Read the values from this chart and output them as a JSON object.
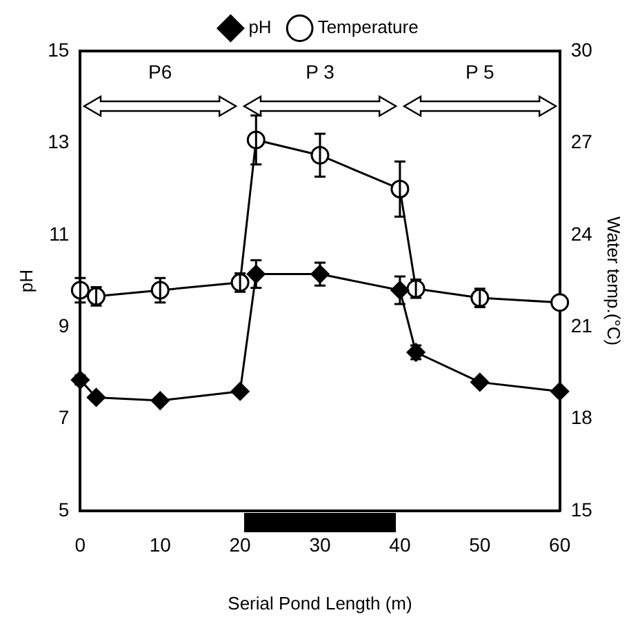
{
  "chart_data": {
    "type": "line",
    "xlabel": "Serial Pond Length (m)",
    "ylabel": "pH",
    "y2label": "Water temp.(°C)",
    "xlim": [
      0,
      60
    ],
    "xticks": [
      0,
      10,
      20,
      30,
      40,
      50,
      60
    ],
    "ylim": [
      5,
      15
    ],
    "yticks": [
      5,
      7,
      9,
      11,
      13,
      15
    ],
    "y2lim": [
      15,
      30
    ],
    "y2ticks": [
      15,
      18,
      21,
      24,
      27,
      30
    ],
    "legend": "top",
    "grid": false,
    "line_style": "solid",
    "series": [
      {
        "name": "pH",
        "color": "#000000",
        "marker": "diamond",
        "x": [
          0,
          2,
          10,
          20,
          22,
          30,
          40,
          42,
          50,
          60
        ],
        "values": [
          7.85,
          7.47,
          7.4,
          7.6,
          10.15,
          10.15,
          9.8,
          8.45,
          7.8,
          7.6
        ],
        "errors": [
          0.1,
          null,
          null,
          null,
          0.3,
          0.25,
          0.3,
          0.15,
          null,
          null
        ]
      },
      {
        "name": "Temperature",
        "color": "#000000",
        "marker": "circle",
        "axis": "y2",
        "x": [
          0,
          2,
          10,
          20,
          22,
          30,
          40,
          42,
          50,
          60
        ],
        "values": [
          22.2,
          22.0,
          22.2,
          22.45,
          27.1,
          26.6,
          25.5,
          22.25,
          21.95,
          21.8
        ],
        "errors": [
          0.4,
          0.3,
          0.4,
          0.3,
          0.8,
          0.7,
          0.9,
          0.3,
          0.3,
          null
        ]
      }
    ],
    "annotations": [
      "P6",
      "P 3",
      "P 5"
    ]
  }
}
